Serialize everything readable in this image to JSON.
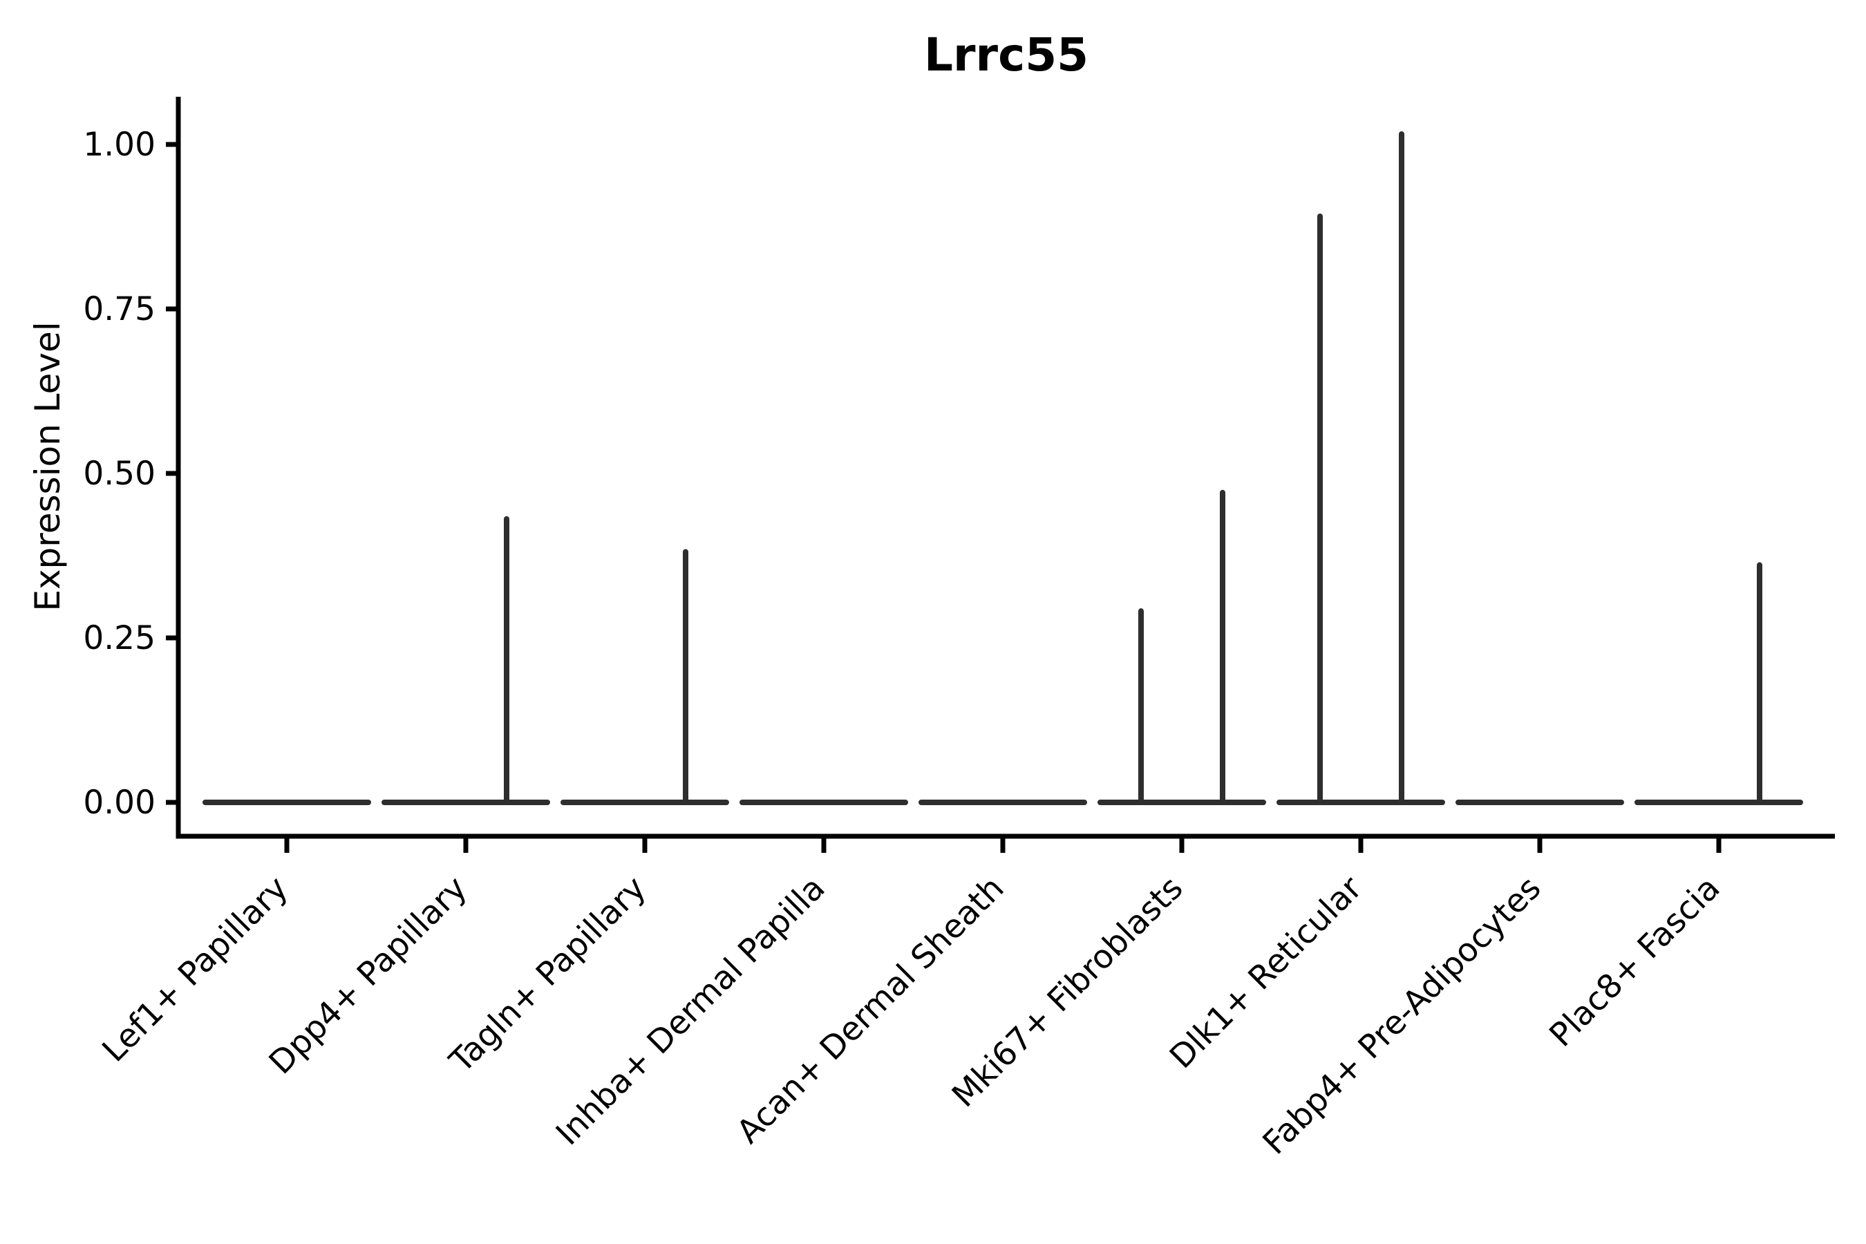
{
  "chart_data": {
    "type": "violin",
    "title": "Lrrc55",
    "ylabel": "Expression Level",
    "xlabel": "",
    "categories": [
      "Lef1+ Papillary",
      "Dpp4+ Papillary",
      "Tagln+ Papillary",
      "Inhba+ Dermal Papilla",
      "Acan+ Dermal Sheath",
      "Mki67+ Fibroblasts",
      "Dlk1+ Reticular",
      "Fabp4+ Pre-Adipocytes",
      "Plac8+ Fascia"
    ],
    "y_ticks": [
      {
        "text": "1.00",
        "value": 1.0
      },
      {
        "text": "0.75",
        "value": 0.75
      },
      {
        "text": "0.50",
        "value": 0.5
      },
      {
        "text": "0.25",
        "value": 0.25
      },
      {
        "text": "0.00",
        "value": 0.0
      }
    ],
    "ylim": [
      0.0,
      1.07
    ],
    "baseline_value": 0.0,
    "series": [
      {
        "name": "violin-left-half",
        "side": -1,
        "max_values": [
          0,
          0,
          0,
          0,
          0,
          0.295,
          0.895,
          0,
          0
        ]
      },
      {
        "name": "violin-right-half",
        "side": 1,
        "max_values": [
          0,
          0.435,
          0.385,
          0,
          0,
          0.475,
          1.02,
          0,
          0.365
        ]
      }
    ],
    "violin_color": "#2e2e2e",
    "axis_color": "#000000",
    "grid": false,
    "legend_position": "none"
  }
}
